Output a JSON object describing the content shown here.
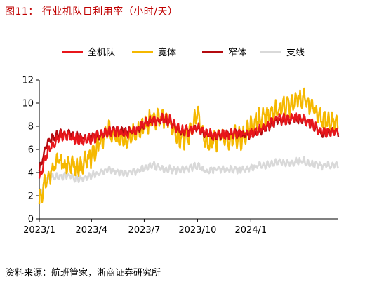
{
  "header": {
    "title": "图11： 行业机队日利用率（小时/天）"
  },
  "footer": {
    "source": "资料来源：航班管家，浙商证券研究所"
  },
  "chart_data": {
    "type": "line",
    "title": "行业机队日利用率（小时/天）",
    "xlabel": "",
    "ylabel": "",
    "ylim": [
      0,
      12
    ],
    "yticks": [
      "0",
      "2",
      "4",
      "6",
      "8",
      "10",
      "12"
    ],
    "xrange": [
      "2023-01-01",
      "2024-05-31"
    ],
    "xticks": [
      "2023/1",
      "2023/4",
      "2023/7",
      "2023/10",
      "2024/1"
    ],
    "legend_position": "top",
    "grid": false,
    "series": [
      {
        "name": "全机队",
        "color": "#e8161b",
        "points": [
          [
            "2023-01-01",
            3.6
          ],
          [
            "2023-01-15",
            5.8
          ],
          [
            "2023-02-01",
            7.0
          ],
          [
            "2023-02-15",
            7.2
          ],
          [
            "2023-03-01",
            7.0
          ],
          [
            "2023-03-15",
            6.8
          ],
          [
            "2023-04-01",
            6.9
          ],
          [
            "2023-04-15",
            7.2
          ],
          [
            "2023-05-01",
            7.6
          ],
          [
            "2023-05-15",
            7.5
          ],
          [
            "2023-06-01",
            7.4
          ],
          [
            "2023-06-15",
            7.6
          ],
          [
            "2023-07-01",
            8.2
          ],
          [
            "2023-07-15",
            8.5
          ],
          [
            "2023-08-01",
            8.6
          ],
          [
            "2023-08-15",
            8.5
          ],
          [
            "2023-09-01",
            7.6
          ],
          [
            "2023-09-15",
            7.6
          ],
          [
            "2023-10-01",
            7.9
          ],
          [
            "2023-10-15",
            7.4
          ],
          [
            "2023-11-01",
            7.2
          ],
          [
            "2023-11-15",
            7.3
          ],
          [
            "2023-12-01",
            7.4
          ],
          [
            "2023-12-15",
            7.3
          ],
          [
            "2024-01-01",
            7.4
          ],
          [
            "2024-01-15",
            7.6
          ],
          [
            "2024-02-01",
            8.1
          ],
          [
            "2024-02-15",
            8.7
          ],
          [
            "2024-03-01",
            8.6
          ],
          [
            "2024-03-15",
            8.8
          ],
          [
            "2024-04-01",
            8.6
          ],
          [
            "2024-04-15",
            8.3
          ],
          [
            "2024-05-01",
            7.5
          ],
          [
            "2024-05-31",
            7.6
          ]
        ]
      },
      {
        "name": "宽体",
        "color": "#f5b800",
        "points": [
          [
            "2023-01-01",
            1.5
          ],
          [
            "2023-01-15",
            3.5
          ],
          [
            "2023-02-01",
            5.0
          ],
          [
            "2023-02-15",
            4.6
          ],
          [
            "2023-03-01",
            4.7
          ],
          [
            "2023-03-15",
            4.5
          ],
          [
            "2023-04-01",
            5.4
          ],
          [
            "2023-04-15",
            6.7
          ],
          [
            "2023-05-01",
            7.7
          ],
          [
            "2023-05-15",
            6.9
          ],
          [
            "2023-06-01",
            6.8
          ],
          [
            "2023-06-15",
            7.3
          ],
          [
            "2023-07-01",
            8.1
          ],
          [
            "2023-07-15",
            8.6
          ],
          [
            "2023-08-01",
            8.8
          ],
          [
            "2023-08-15",
            8.5
          ],
          [
            "2023-09-01",
            6.9
          ],
          [
            "2023-09-15",
            7.2
          ],
          [
            "2023-10-01",
            9.1
          ],
          [
            "2023-10-15",
            6.4
          ],
          [
            "2023-11-01",
            6.9
          ],
          [
            "2023-11-15",
            7.0
          ],
          [
            "2023-12-01",
            7.1
          ],
          [
            "2023-12-15",
            6.8
          ],
          [
            "2024-01-01",
            8.0
          ],
          [
            "2024-01-15",
            8.6
          ],
          [
            "2024-02-01",
            8.9
          ],
          [
            "2024-02-15",
            9.4
          ],
          [
            "2024-03-01",
            9.8
          ],
          [
            "2024-03-15",
            10.0
          ],
          [
            "2024-04-01",
            10.6
          ],
          [
            "2024-04-15",
            9.5
          ],
          [
            "2024-05-01",
            8.6
          ],
          [
            "2024-05-31",
            8.1
          ]
        ]
      },
      {
        "name": "窄体",
        "color": "#b40a0f",
        "points": [
          [
            "2023-01-01",
            4.2
          ],
          [
            "2023-01-15",
            6.6
          ],
          [
            "2023-02-01",
            7.3
          ],
          [
            "2023-02-15",
            7.4
          ],
          [
            "2023-03-01",
            7.2
          ],
          [
            "2023-03-15",
            7.0
          ],
          [
            "2023-04-01",
            7.0
          ],
          [
            "2023-04-15",
            7.2
          ],
          [
            "2023-05-01",
            7.5
          ],
          [
            "2023-05-15",
            7.6
          ],
          [
            "2023-06-01",
            7.5
          ],
          [
            "2023-06-15",
            7.6
          ],
          [
            "2023-07-01",
            8.2
          ],
          [
            "2023-07-15",
            8.5
          ],
          [
            "2023-08-01",
            8.5
          ],
          [
            "2023-08-15",
            8.4
          ],
          [
            "2023-09-01",
            7.6
          ],
          [
            "2023-09-15",
            7.6
          ],
          [
            "2023-10-01",
            7.8
          ],
          [
            "2023-10-15",
            7.3
          ],
          [
            "2023-11-01",
            7.2
          ],
          [
            "2023-11-15",
            7.3
          ],
          [
            "2023-12-01",
            7.4
          ],
          [
            "2023-12-15",
            7.3
          ],
          [
            "2024-01-01",
            7.3
          ],
          [
            "2024-01-15",
            7.5
          ],
          [
            "2024-02-01",
            8.0
          ],
          [
            "2024-02-15",
            8.5
          ],
          [
            "2024-03-01",
            8.5
          ],
          [
            "2024-03-15",
            8.7
          ],
          [
            "2024-04-01",
            8.5
          ],
          [
            "2024-04-15",
            8.2
          ],
          [
            "2024-05-01",
            7.4
          ],
          [
            "2024-05-31",
            7.5
          ]
        ]
      },
      {
        "name": "支线",
        "color": "#d9d9d9",
        "points": [
          [
            "2023-01-01",
            2.0
          ],
          [
            "2023-01-15",
            3.6
          ],
          [
            "2023-02-01",
            3.6
          ],
          [
            "2023-02-15",
            3.7
          ],
          [
            "2023-03-01",
            3.6
          ],
          [
            "2023-03-15",
            3.4
          ],
          [
            "2023-04-01",
            3.8
          ],
          [
            "2023-04-15",
            4.0
          ],
          [
            "2023-05-01",
            4.3
          ],
          [
            "2023-05-15",
            4.1
          ],
          [
            "2023-06-01",
            4.0
          ],
          [
            "2023-06-15",
            4.1
          ],
          [
            "2023-07-01",
            4.4
          ],
          [
            "2023-07-15",
            4.6
          ],
          [
            "2023-08-01",
            4.4
          ],
          [
            "2023-08-15",
            4.3
          ],
          [
            "2023-09-01",
            4.2
          ],
          [
            "2023-09-15",
            4.4
          ],
          [
            "2023-10-01",
            4.6
          ],
          [
            "2023-10-15",
            4.1
          ],
          [
            "2023-11-01",
            4.3
          ],
          [
            "2023-11-15",
            4.2
          ],
          [
            "2023-12-01",
            4.3
          ],
          [
            "2023-12-15",
            4.2
          ],
          [
            "2024-01-01",
            4.4
          ],
          [
            "2024-01-15",
            4.6
          ],
          [
            "2024-02-01",
            4.7
          ],
          [
            "2024-02-15",
            4.9
          ],
          [
            "2024-03-01",
            4.8
          ],
          [
            "2024-03-15",
            4.9
          ],
          [
            "2024-04-01",
            5.0
          ],
          [
            "2024-04-15",
            4.7
          ],
          [
            "2024-05-01",
            4.6
          ],
          [
            "2024-05-31",
            4.6
          ]
        ]
      }
    ]
  }
}
